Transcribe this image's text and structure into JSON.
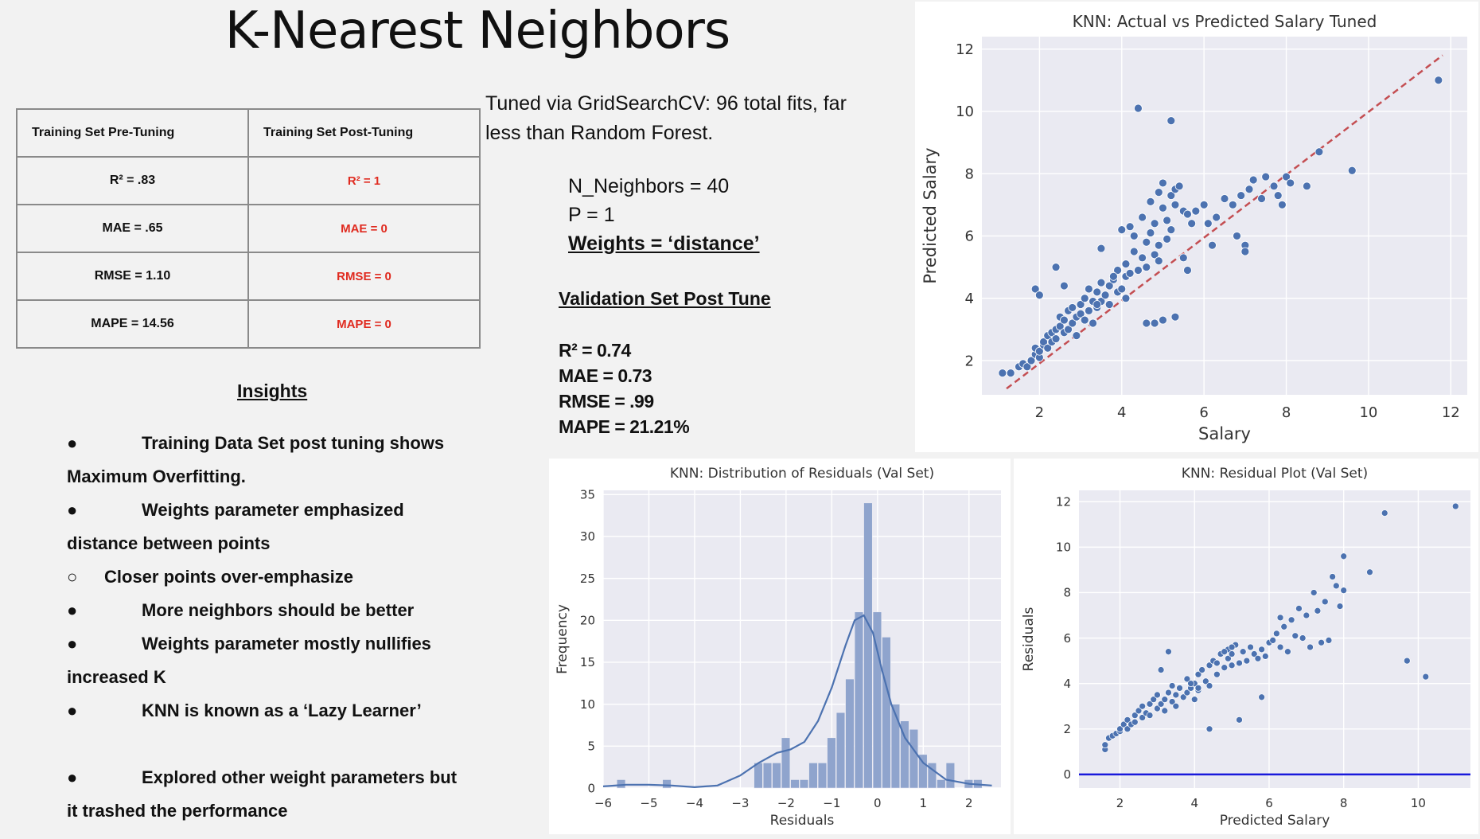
{
  "slide_title": "K-Nearest Neighbors",
  "metrics_table": {
    "headers": [
      "Training Set Pre-Tuning",
      "Training Set Post-Tuning"
    ],
    "rows": [
      [
        "R² = .83",
        "R² = 1"
      ],
      [
        "MAE = .65",
        "MAE = 0"
      ],
      [
        "RMSE = 1.10",
        "RMSE = 0"
      ],
      [
        "MAPE = 14.56",
        "MAPE = 0"
      ]
    ]
  },
  "tuning_note": "Tuned via GridSearchCV: 96 total fits, far less than Random Forest.",
  "params": {
    "n_neighbors": "N_Neighbors = 40",
    "p": "P = 1",
    "weights": "Weights = ‘distance’"
  },
  "validation": {
    "title": "Validation Set Post Tune",
    "stats": [
      "R² = 0.74",
      "MAE = 0.73",
      "RMSE = .99",
      "MAPE = 21.21%"
    ]
  },
  "insights": {
    "title": "Insights",
    "items": [
      {
        "bullet": "●",
        "text": "Training Data Set post tuning shows",
        "cont": "Maximum Overfitting."
      },
      {
        "bullet": "●",
        "text": "Weights parameter emphasized",
        "cont": "distance between points"
      },
      {
        "bullet": "○",
        "text": "Closer points over-emphasize",
        "sub": true
      },
      {
        "bullet": "●",
        "text": "More neighbors should be better"
      },
      {
        "bullet": "●",
        "text": "Weights parameter mostly nullifies",
        "cont": "increased K"
      },
      {
        "bullet": "●",
        "text": "KNN is known as a ‘Lazy Learner’",
        "gap": true
      },
      {
        "bullet": "●",
        "text": "Explored other weight parameters but",
        "cont": "it trashed the performance"
      }
    ]
  },
  "colors": {
    "point": "#4c72b0",
    "reference_line": "#c44e52",
    "zero_line": "#1a1adb",
    "highlight": "#e02b20",
    "plot_bg": "#eaeaf2"
  },
  "chart_data": [
    {
      "type": "scatter",
      "title": "KNN: Actual vs Predicted Salary Tuned",
      "xlabel": "Salary",
      "ylabel": "Predicted Salary",
      "xlim": [
        0.6,
        12.4
      ],
      "ylim": [
        0.9,
        12.4
      ],
      "xticks": [
        2,
        4,
        6,
        8,
        10,
        12
      ],
      "yticks": [
        2,
        4,
        6,
        8,
        10,
        12
      ],
      "grid": true,
      "reference_line": {
        "x": [
          1.2,
          11.8
        ],
        "y": [
          1.1,
          11.8
        ],
        "style": "dashed"
      },
      "x": [
        1.1,
        1.3,
        1.5,
        1.6,
        1.7,
        1.8,
        1.9,
        1.9,
        2.0,
        2.0,
        2.1,
        2.1,
        2.2,
        2.2,
        2.3,
        2.3,
        2.4,
        2.4,
        2.5,
        2.5,
        2.6,
        2.6,
        2.7,
        2.7,
        2.8,
        2.8,
        2.9,
        2.9,
        3.0,
        3.0,
        3.1,
        3.1,
        3.2,
        3.2,
        3.3,
        3.3,
        3.4,
        3.4,
        3.5,
        3.5,
        3.6,
        3.7,
        3.7,
        3.8,
        3.9,
        3.9,
        4.0,
        4.0,
        4.1,
        4.1,
        4.2,
        4.2,
        4.3,
        4.3,
        4.4,
        4.5,
        4.5,
        4.6,
        4.6,
        4.7,
        4.7,
        4.8,
        4.8,
        4.9,
        4.9,
        5.0,
        5.0,
        5.1,
        5.1,
        5.2,
        5.2,
        5.3,
        5.3,
        5.4,
        5.5,
        5.5,
        5.6,
        5.7,
        5.8,
        6.0,
        6.1,
        6.3,
        6.5,
        6.7,
        6.9,
        7.0,
        7.1,
        7.2,
        7.4,
        7.5,
        7.7,
        7.8,
        7.9,
        8.0,
        8.1,
        8.5,
        8.8,
        9.6,
        11.7,
        1.9,
        2.0,
        2.4,
        2.6,
        3.5,
        4.4,
        5.2,
        4.6,
        4.8,
        5.3,
        5.0,
        3.4,
        3.8,
        4.1,
        4.9,
        5.6,
        6.2,
        6.8,
        7.0
      ],
      "y": [
        1.6,
        1.6,
        1.8,
        1.9,
        1.8,
        2.0,
        2.2,
        2.4,
        2.1,
        2.3,
        2.5,
        2.6,
        2.4,
        2.8,
        2.6,
        2.9,
        3.0,
        2.7,
        3.4,
        3.1,
        2.9,
        3.3,
        3.0,
        3.6,
        3.2,
        3.7,
        3.4,
        2.8,
        3.5,
        3.8,
        3.3,
        4.0,
        3.6,
        4.3,
        3.9,
        3.2,
        4.2,
        3.7,
        4.5,
        3.9,
        4.1,
        4.4,
        3.8,
        4.6,
        4.2,
        4.9,
        4.3,
        6.2,
        4.7,
        5.1,
        6.3,
        4.8,
        5.5,
        6.0,
        4.9,
        5.3,
        6.6,
        5.0,
        5.8,
        6.1,
        7.1,
        5.4,
        6.4,
        7.4,
        5.7,
        6.9,
        7.7,
        5.9,
        6.5,
        7.3,
        6.2,
        7.5,
        7.0,
        7.6,
        6.8,
        5.3,
        6.7,
        6.4,
        6.8,
        7.0,
        6.4,
        6.6,
        7.2,
        7.0,
        7.3,
        5.7,
        7.5,
        7.8,
        7.2,
        7.9,
        7.6,
        7.3,
        7.0,
        7.9,
        7.7,
        7.6,
        8.7,
        8.1,
        11.0,
        4.3,
        4.1,
        5.0,
        4.4,
        5.6,
        10.1,
        9.7,
        3.2,
        3.2,
        3.4,
        3.3,
        3.8,
        4.7,
        4.0,
        5.2,
        4.9,
        5.7,
        6.0,
        5.5
      ]
    },
    {
      "type": "bar",
      "title": "KNN: Distribution of Residuals (Val Set)",
      "xlabel": "Residuals",
      "ylabel": "Frequency",
      "xlim": [
        -6.0,
        2.7
      ],
      "ylim": [
        0,
        35.5
      ],
      "xticks": [
        -6,
        -5,
        -4,
        -3,
        -2,
        -1,
        0,
        1,
        2
      ],
      "yticks": [
        0,
        5,
        10,
        15,
        20,
        25,
        30,
        35
      ],
      "bin_width": 0.2,
      "bin_starts": [
        -5.7,
        -4.7,
        -2.7,
        -2.5,
        -2.3,
        -2.1,
        -1.9,
        -1.7,
        -1.5,
        -1.3,
        -1.1,
        -0.9,
        -0.7,
        -0.5,
        -0.3,
        -0.1,
        0.1,
        0.3,
        0.5,
        0.7,
        0.9,
        1.1,
        1.3,
        1.5,
        1.9,
        2.1
      ],
      "values": [
        1,
        1,
        3,
        3,
        3,
        6,
        1,
        1,
        3,
        3,
        6,
        9,
        13,
        21,
        34,
        21,
        18,
        10,
        8,
        7,
        4,
        3,
        1,
        3,
        1,
        1
      ],
      "kde": {
        "x": [
          -6.0,
          -5.5,
          -5.0,
          -4.5,
          -4.0,
          -3.5,
          -3.0,
          -2.6,
          -2.2,
          -1.9,
          -1.6,
          -1.3,
          -1.0,
          -0.7,
          -0.5,
          -0.3,
          -0.1,
          0.1,
          0.3,
          0.6,
          1.0,
          1.5,
          2.0,
          2.5
        ],
        "y": [
          0.2,
          0.4,
          0.4,
          0.3,
          0.1,
          0.3,
          1.5,
          3.0,
          4.2,
          4.6,
          5.5,
          8.0,
          12.0,
          17.0,
          20.0,
          20.6,
          18.5,
          14.0,
          10.0,
          6.0,
          3.0,
          1.0,
          0.5,
          0.3
        ]
      }
    },
    {
      "type": "scatter",
      "title": "KNN: Residual Plot (Val Set)",
      "xlabel": "Predicted Salary",
      "ylabel": "Residuals",
      "xlim": [
        0.9,
        11.4
      ],
      "ylim": [
        -0.6,
        12.5
      ],
      "xticks": [
        2,
        4,
        6,
        8,
        10
      ],
      "yticks": [
        0,
        2,
        4,
        6,
        8,
        10,
        12
      ],
      "grid": true,
      "zero_line": 0,
      "x": [
        1.6,
        1.6,
        1.7,
        1.8,
        1.9,
        2.0,
        2.0,
        2.1,
        2.2,
        2.2,
        2.3,
        2.4,
        2.4,
        2.5,
        2.6,
        2.6,
        2.7,
        2.8,
        2.8,
        2.9,
        3.0,
        3.0,
        3.1,
        3.2,
        3.2,
        3.3,
        3.4,
        3.4,
        3.5,
        3.5,
        3.6,
        3.7,
        3.8,
        3.8,
        3.9,
        4.0,
        4.0,
        4.1,
        4.1,
        4.2,
        4.3,
        4.4,
        4.4,
        4.5,
        4.6,
        4.6,
        4.7,
        4.8,
        4.9,
        4.9,
        5.0,
        5.0,
        5.1,
        5.2,
        5.3,
        5.4,
        5.5,
        5.6,
        5.7,
        5.8,
        5.9,
        6.0,
        6.1,
        6.2,
        6.3,
        6.4,
        6.5,
        6.6,
        6.7,
        6.8,
        6.9,
        7.0,
        7.1,
        7.2,
        7.3,
        7.4,
        7.5,
        7.6,
        7.7,
        7.8,
        7.9,
        8.0,
        8.0,
        8.7,
        9.1,
        9.7,
        10.2,
        11.0,
        3.1,
        3.3,
        3.9,
        4.1,
        4.4,
        5.2,
        5.8,
        6.3,
        4.8,
        5.0
      ],
      "y": [
        1.1,
        1.3,
        1.6,
        1.7,
        1.8,
        1.9,
        2.0,
        2.2,
        2.0,
        2.4,
        2.2,
        2.6,
        2.3,
        2.8,
        2.5,
        3.0,
        2.7,
        3.1,
        2.6,
        3.3,
        2.9,
        3.5,
        3.1,
        3.3,
        2.8,
        3.6,
        3.2,
        3.9,
        3.5,
        3.0,
        3.8,
        3.4,
        3.6,
        4.2,
        3.8,
        3.3,
        4.0,
        4.4,
        3.7,
        4.6,
        4.1,
        4.8,
        3.9,
        5.0,
        4.4,
        4.9,
        5.3,
        4.7,
        5.1,
        5.5,
        4.8,
        5.3,
        5.7,
        4.9,
        5.4,
        5.0,
        5.6,
        5.3,
        5.1,
        5.5,
        5.2,
        5.8,
        5.9,
        6.2,
        5.6,
        6.5,
        5.4,
        6.8,
        6.1,
        7.3,
        6.0,
        7.0,
        5.6,
        8.0,
        7.2,
        5.8,
        7.6,
        5.9,
        8.7,
        8.3,
        7.4,
        9.6,
        8.1,
        8.9,
        11.5,
        5.0,
        4.3,
        11.8,
        4.6,
        5.4,
        4.0,
        3.8,
        2.0,
        2.4,
        3.4,
        6.9,
        5.4,
        5.6
      ]
    }
  ]
}
